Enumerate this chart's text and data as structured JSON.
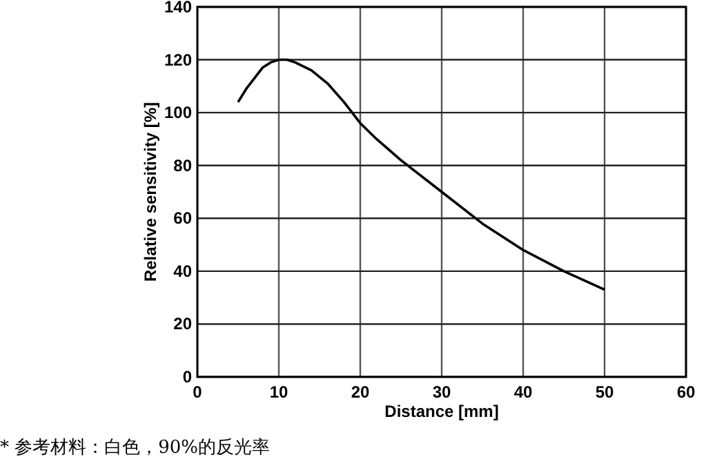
{
  "chart_data": {
    "type": "line",
    "xlabel": "Distance [mm]",
    "ylabel": "Relative sensitivity [%]",
    "x": [
      5,
      6,
      7,
      8,
      9,
      10,
      11,
      12,
      14,
      16,
      18,
      20,
      22,
      25,
      30,
      35,
      40,
      45,
      50
    ],
    "series": [
      {
        "color": "#000000",
        "values": [
          104,
          109,
          113,
          117,
          119,
          120,
          120,
          119,
          116,
          111,
          104,
          96,
          90,
          82,
          70,
          58,
          48,
          40,
          33
        ]
      }
    ],
    "xlim": [
      0,
      60
    ],
    "xticks": [
      0,
      10,
      20,
      30,
      40,
      50,
      60
    ],
    "ylim": [
      0,
      140
    ],
    "yticks": [
      0,
      20,
      40,
      60,
      80,
      100,
      120,
      140
    ],
    "grid": true,
    "marker": "none",
    "line_style": "solid",
    "annotations": [
      "* 参考材料：白色，90%的反光率"
    ]
  }
}
